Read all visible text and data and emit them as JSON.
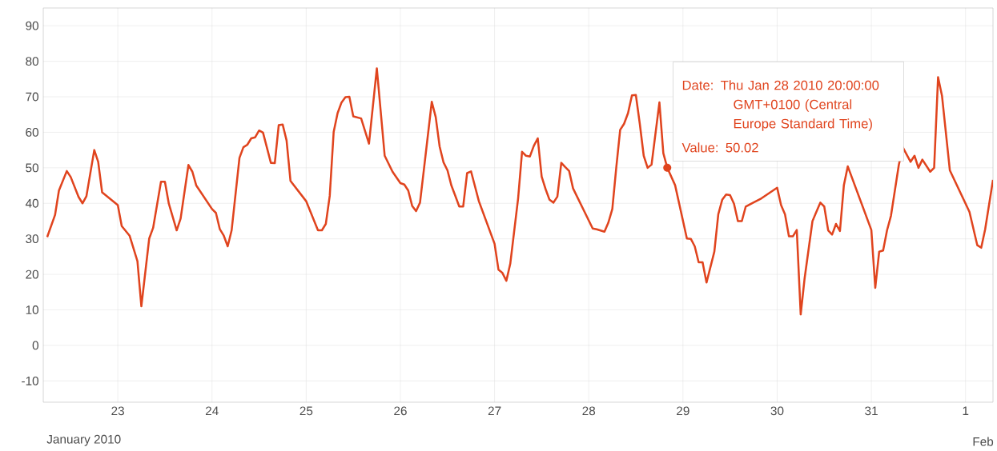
{
  "chart_data": {
    "type": "line",
    "color": "#e0441e",
    "x": [
      "2010-01-22T06:00",
      "2010-01-22T08:00",
      "2010-01-22T09:00",
      "2010-01-22T11:00",
      "2010-01-22T12:00",
      "2010-01-22T14:00",
      "2010-01-22T15:00",
      "2010-01-22T16:00",
      "2010-01-22T18:00",
      "2010-01-22T19:00",
      "2010-01-22T20:00",
      "2010-01-23T00:00",
      "2010-01-23T01:00",
      "2010-01-23T03:00",
      "2010-01-23T05:00",
      "2010-01-23T06:00",
      "2010-01-23T08:00",
      "2010-01-23T09:00",
      "2010-01-23T11:00",
      "2010-01-23T12:00",
      "2010-01-23T13:00",
      "2010-01-23T15:00",
      "2010-01-23T16:00",
      "2010-01-23T18:00",
      "2010-01-23T19:00",
      "2010-01-23T20:00",
      "2010-01-24T00:00",
      "2010-01-24T01:00",
      "2010-01-24T02:00",
      "2010-01-24T03:00",
      "2010-01-24T04:00",
      "2010-01-24T05:00",
      "2010-01-24T07:00",
      "2010-01-24T08:00",
      "2010-01-24T09:00",
      "2010-01-24T10:00",
      "2010-01-24T11:00",
      "2010-01-24T12:00",
      "2010-01-24T13:00",
      "2010-01-24T15:00",
      "2010-01-24T16:00",
      "2010-01-24T17:00",
      "2010-01-24T18:00",
      "2010-01-24T19:00",
      "2010-01-24T20:00",
      "2010-01-25T00:00",
      "2010-01-25T03:00",
      "2010-01-25T04:00",
      "2010-01-25T05:00",
      "2010-01-25T06:00",
      "2010-01-25T07:00",
      "2010-01-25T08:00",
      "2010-01-25T09:00",
      "2010-01-25T10:00",
      "2010-01-25T11:00",
      "2010-01-25T12:00",
      "2010-01-25T14:00",
      "2010-01-25T16:00",
      "2010-01-25T18:00",
      "2010-01-25T20:00",
      "2010-01-25T22:00",
      "2010-01-26T00:00",
      "2010-01-26T01:00",
      "2010-01-26T02:00",
      "2010-01-26T03:00",
      "2010-01-26T04:00",
      "2010-01-26T05:00",
      "2010-01-26T06:00",
      "2010-01-26T08:00",
      "2010-01-26T09:00",
      "2010-01-26T10:00",
      "2010-01-26T11:00",
      "2010-01-26T12:00",
      "2010-01-26T13:00",
      "2010-01-26T14:00",
      "2010-01-26T15:00",
      "2010-01-26T16:00",
      "2010-01-26T17:00",
      "2010-01-26T18:00",
      "2010-01-26T20:00",
      "2010-01-27T00:00",
      "2010-01-27T01:00",
      "2010-01-27T02:00",
      "2010-01-27T03:00",
      "2010-01-27T04:00",
      "2010-01-27T06:00",
      "2010-01-27T07:00",
      "2010-01-27T08:00",
      "2010-01-27T09:00",
      "2010-01-27T10:00",
      "2010-01-27T11:00",
      "2010-01-27T12:00",
      "2010-01-27T13:00",
      "2010-01-27T14:00",
      "2010-01-27T15:00",
      "2010-01-27T16:00",
      "2010-01-27T17:00",
      "2010-01-27T18:00",
      "2010-01-27T19:00",
      "2010-01-27T20:00",
      "2010-01-28T01:00",
      "2010-01-28T02:00",
      "2010-01-28T04:00",
      "2010-01-28T05:00",
      "2010-01-28T06:00",
      "2010-01-28T07:00",
      "2010-01-28T08:00",
      "2010-01-28T09:00",
      "2010-01-28T10:00",
      "2010-01-28T11:00",
      "2010-01-28T12:00",
      "2010-01-28T13:00",
      "2010-01-28T14:00",
      "2010-01-28T15:00",
      "2010-01-28T16:00",
      "2010-01-28T18:00",
      "2010-01-28T19:00",
      "2010-01-28T20:00",
      "2010-01-28T22:00",
      "2010-01-29T01:00",
      "2010-01-29T02:00",
      "2010-01-29T03:00",
      "2010-01-29T04:00",
      "2010-01-29T05:00",
      "2010-01-29T06:00",
      "2010-01-29T08:00",
      "2010-01-29T09:00",
      "2010-01-29T10:00",
      "2010-01-29T11:00",
      "2010-01-29T12:00",
      "2010-01-29T13:00",
      "2010-01-29T14:00",
      "2010-01-29T15:00",
      "2010-01-29T16:00",
      "2010-01-29T18:00",
      "2010-01-29T20:00",
      "2010-01-30T00:00",
      "2010-01-30T01:00",
      "2010-01-30T02:00",
      "2010-01-30T03:00",
      "2010-01-30T04:00",
      "2010-01-30T05:00",
      "2010-01-30T06:00",
      "2010-01-30T07:00",
      "2010-01-30T09:00",
      "2010-01-30T11:00",
      "2010-01-30T12:00",
      "2010-01-30T13:00",
      "2010-01-30T14:00",
      "2010-01-30T15:00",
      "2010-01-30T16:00",
      "2010-01-30T17:00",
      "2010-01-30T18:00",
      "2010-01-31T00:00",
      "2010-01-31T01:00",
      "2010-01-31T02:00",
      "2010-01-31T03:00",
      "2010-01-31T04:00",
      "2010-01-31T05:00",
      "2010-01-31T07:00",
      "2010-01-31T08:00",
      "2010-01-31T10:00",
      "2010-01-31T11:00",
      "2010-01-31T12:00",
      "2010-01-31T13:00",
      "2010-01-31T15:00",
      "2010-01-31T16:00",
      "2010-01-31T17:00",
      "2010-01-31T18:00",
      "2010-01-31T20:00",
      "2010-02-01T01:00",
      "2010-02-01T03:00",
      "2010-02-01T04:00",
      "2010-02-01T05:00",
      "2010-02-01T07:00"
    ],
    "values": [
      30.5,
      36.7,
      43.6,
      49.1,
      47.4,
      41.8,
      40.0,
      42.0,
      55.0,
      51.7,
      43.1,
      39.5,
      33.6,
      30.9,
      23.7,
      11.0,
      30.1,
      33.1,
      46.1,
      46.1,
      39.9,
      32.4,
      35.7,
      50.8,
      48.9,
      45.0,
      38.4,
      37.3,
      32.7,
      30.9,
      27.9,
      32.4,
      52.8,
      55.8,
      56.5,
      58.3,
      58.6,
      60.5,
      59.9,
      51.4,
      51.3,
      62.0,
      62.2,
      57.7,
      46.3,
      40.6,
      32.4,
      32.4,
      34.2,
      42.1,
      60.1,
      65.4,
      68.4,
      69.9,
      70.0,
      64.5,
      63.9,
      56.8,
      78.0,
      53.4,
      48.9,
      45.7,
      45.3,
      43.6,
      39.3,
      37.8,
      40.2,
      49.6,
      68.6,
      64.3,
      56.0,
      51.5,
      49.3,
      45.0,
      42.1,
      39.1,
      39.1,
      48.5,
      49.0,
      40.6,
      28.6,
      21.3,
      20.4,
      18.2,
      23.0,
      41.4,
      54.5,
      53.4,
      53.2,
      56.2,
      58.3,
      47.5,
      44.0,
      41.0,
      40.2,
      41.9,
      51.4,
      50.2,
      49.1,
      44.2,
      32.9,
      32.7,
      32.0,
      34.6,
      38.4,
      50.0,
      60.7,
      62.4,
      65.4,
      70.4,
      70.5,
      62.4,
      53.4,
      50.0,
      50.9,
      68.4,
      54.1,
      50.02,
      45.1,
      30.1,
      30.0,
      27.9,
      23.4,
      23.4,
      17.7,
      26.4,
      36.9,
      41.0,
      42.5,
      42.3,
      39.9,
      35.0,
      35.0,
      39.1,
      null,
      41.4,
      44.4,
      39.5,
      36.9,
      30.7,
      30.7,
      32.5,
      8.7,
      18.9,
      35.0,
      40.2,
      39.1,
      32.4,
      31.2,
      34.2,
      32.2,
      45.1,
      50.4,
      32.5,
      16.2,
      26.4,
      26.7,
      32.4,
      36.5,
      50.8,
      55.8,
      51.7,
      53.4,
      50.0,
      52.3,
      48.9,
      50.0,
      75.5,
      70.3,
      49.3,
      37.6,
      28.2,
      27.5,
      32.7,
      46.6
    ],
    "xlim": [
      "2010-01-22T05:00",
      "2010-02-01T07:00"
    ],
    "xticks": [
      {
        "value": "2010-01-23T00:00",
        "label": "23"
      },
      {
        "value": "2010-01-24T00:00",
        "label": "24"
      },
      {
        "value": "2010-01-25T00:00",
        "label": "25"
      },
      {
        "value": "2010-01-26T00:00",
        "label": "26"
      },
      {
        "value": "2010-01-27T00:00",
        "label": "27"
      },
      {
        "value": "2010-01-28T00:00",
        "label": "28"
      },
      {
        "value": "2010-01-29T00:00",
        "label": "29"
      },
      {
        "value": "2010-01-30T00:00",
        "label": "30"
      },
      {
        "value": "2010-01-31T00:00",
        "label": "31"
      },
      {
        "value": "2010-02-01T00:00",
        "label": "1"
      }
    ],
    "ylim": [
      -16,
      95
    ],
    "yticks": [
      -10,
      0,
      10,
      20,
      30,
      40,
      50,
      60,
      70,
      80,
      90
    ],
    "grid": true,
    "annotations": [
      "Date: Thu Jan 28 2010 20:00:00 GMT+0100 (Central Europe Standard Time)",
      {
        "text": "Value: 50.02",
        "x": "2010-01-28T20:00",
        "y": 50.02
      },
      "January 2010",
      "Feb"
    ]
  }
}
